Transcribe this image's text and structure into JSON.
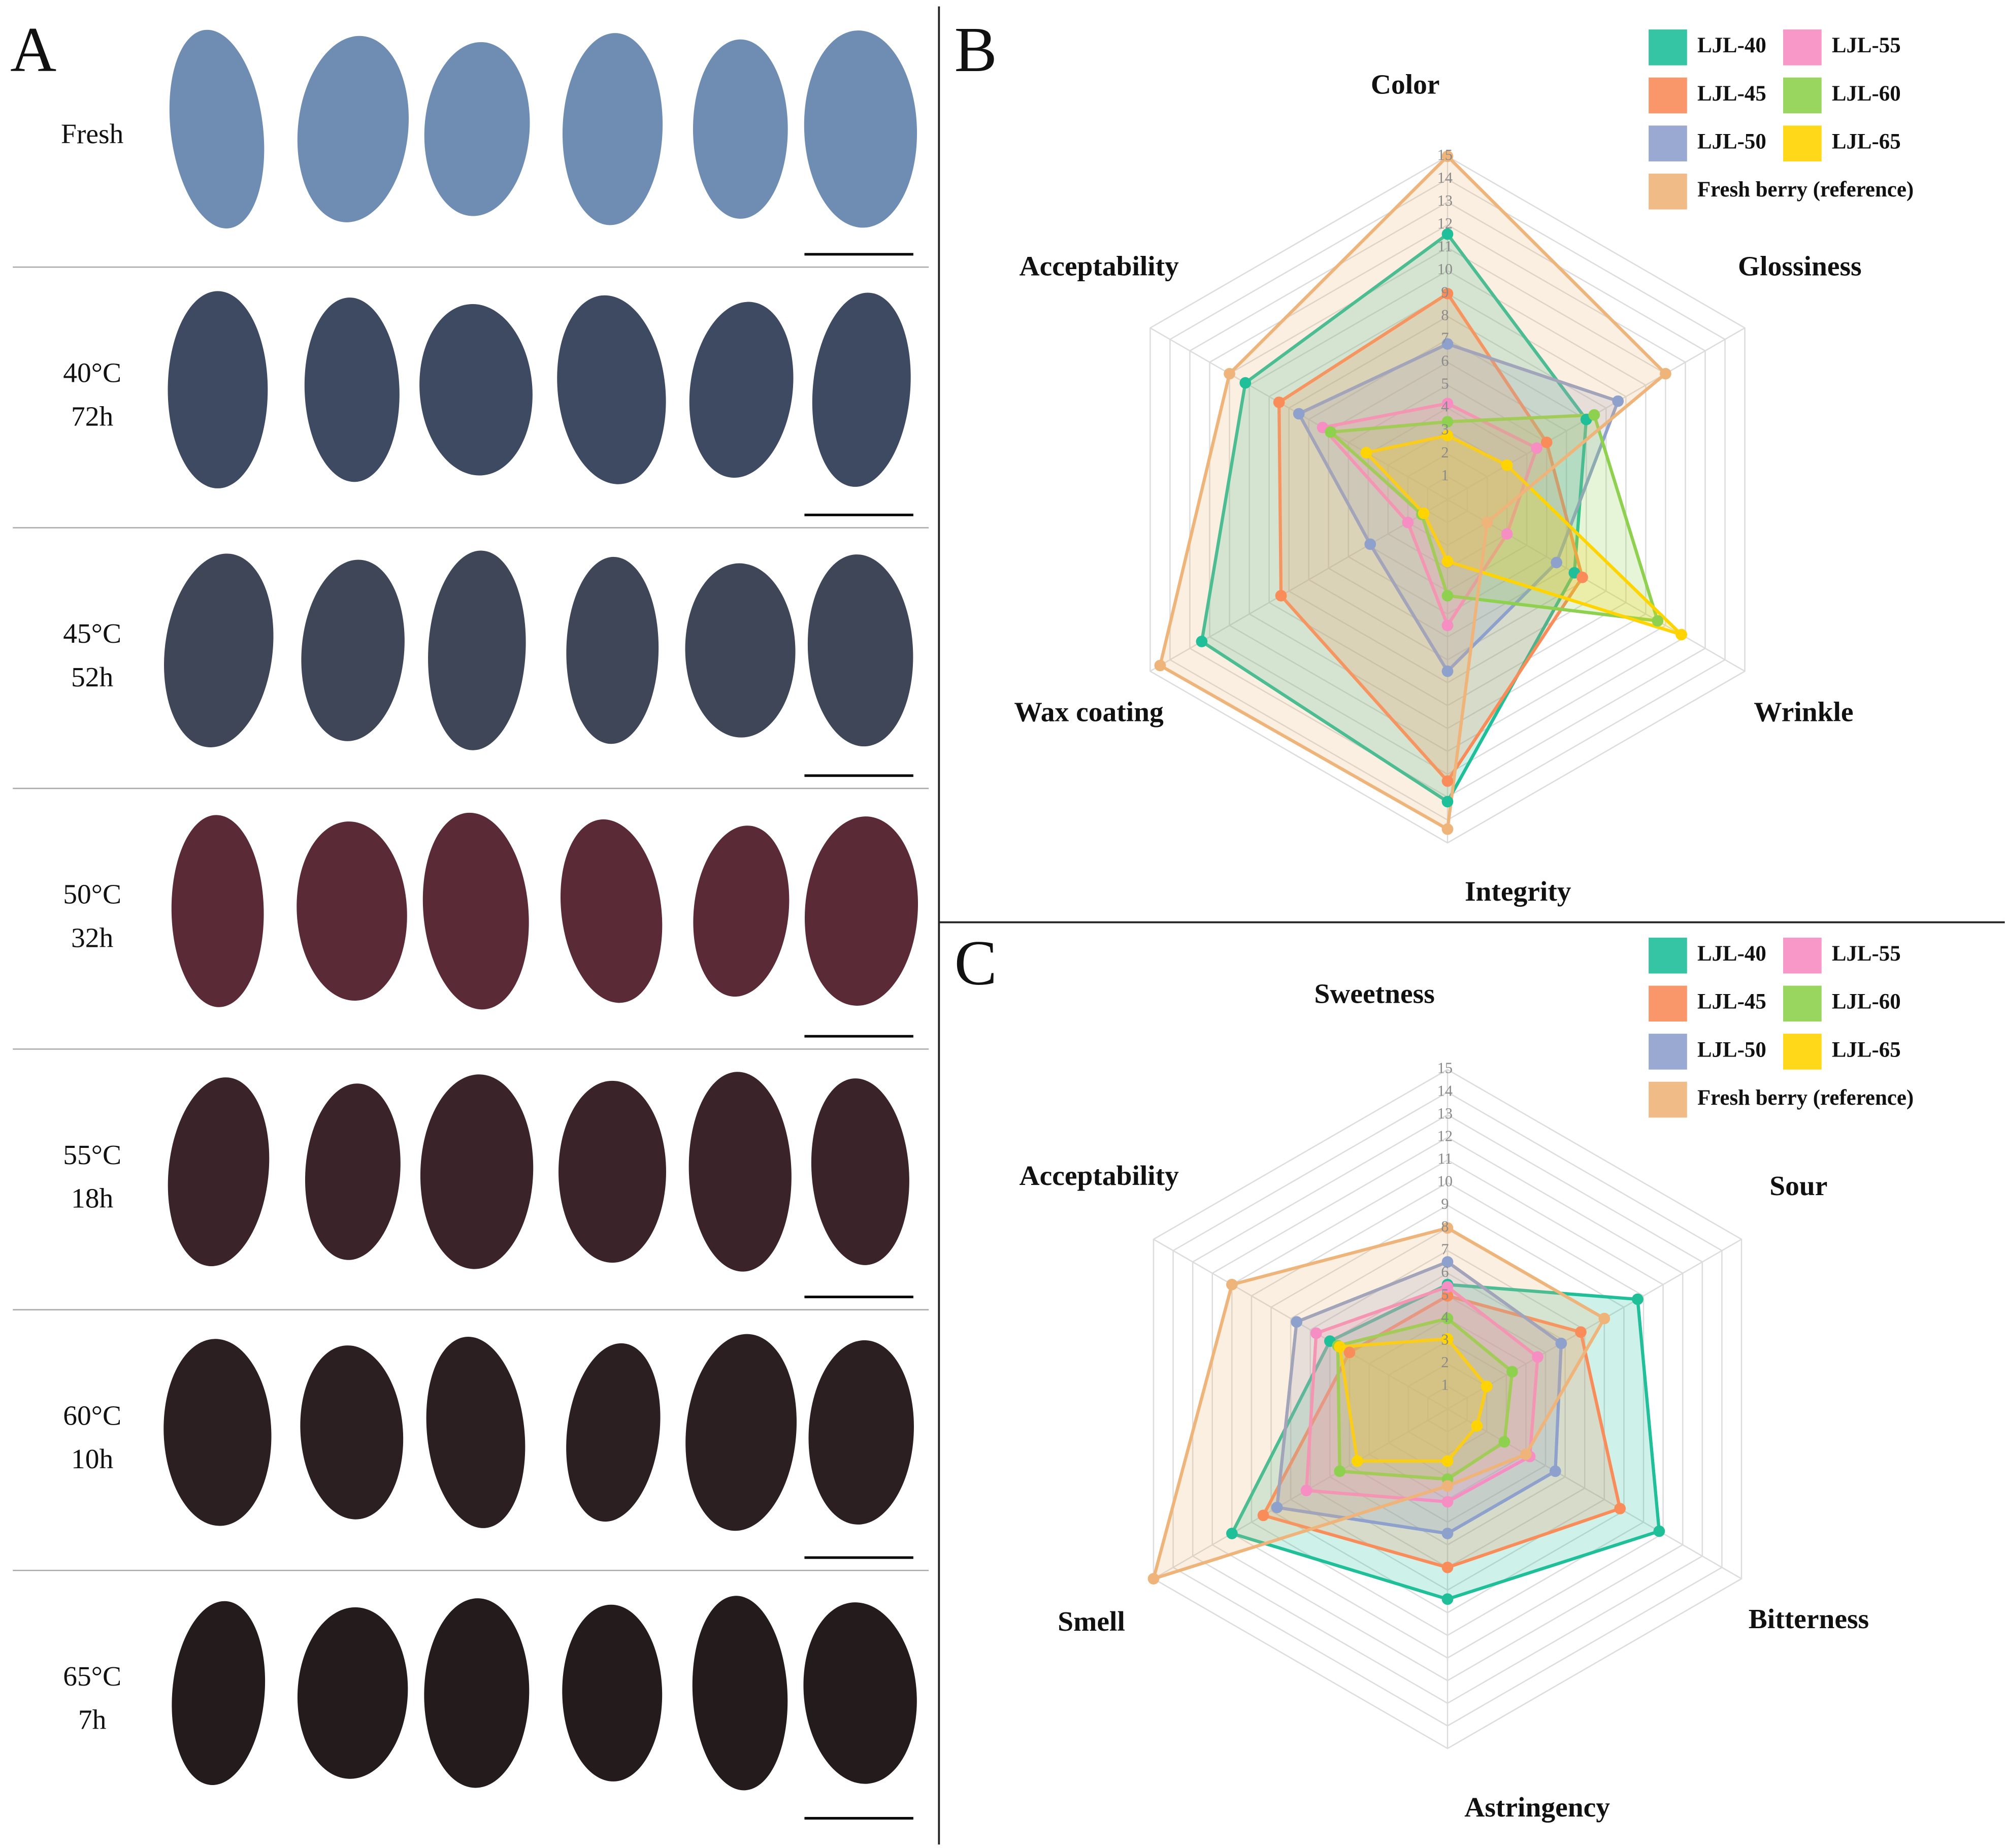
{
  "panel_a": {
    "label": "A",
    "rows": [
      [
        "Fresh"
      ],
      [
        "40°C",
        "72h"
      ],
      [
        "45°C",
        "52h"
      ],
      [
        "50°C",
        "32h"
      ],
      [
        "55°C",
        "18h"
      ],
      [
        "60°C",
        "10h"
      ],
      [
        "65°C",
        "7h"
      ]
    ]
  },
  "chart_data": [
    {
      "type": "radar",
      "label": "B",
      "axes": [
        "Color",
        "Glossiness",
        "Wrinkle",
        "Integrity",
        "Wax coating",
        "Acceptability"
      ],
      "rlim": [
        0,
        15
      ],
      "rticks": [
        1,
        2,
        3,
        4,
        5,
        6,
        7,
        8,
        9,
        10,
        11,
        12,
        13,
        14,
        15
      ],
      "grid": true,
      "legend": "upper right",
      "series": [
        {
          "name": "LJL-40",
          "color": "#1fbf9a",
          "values": [
            11.6,
            7,
            6.4,
            13.2,
            12.4,
            10.2
          ]
        },
        {
          "name": "LJL-45",
          "color": "#fa8c5a",
          "values": [
            9,
            5,
            6.8,
            12.3,
            8.4,
            8.5
          ]
        },
        {
          "name": "LJL-50",
          "color": "#8ea0cc",
          "values": [
            6.8,
            8.6,
            5.5,
            7.5,
            3.9,
            7.5
          ]
        },
        {
          "name": "LJL-55",
          "color": "#f68dc3",
          "values": [
            4.2,
            4.5,
            3,
            5.5,
            2,
            6.3
          ]
        },
        {
          "name": "LJL-60",
          "color": "#8ed14e",
          "values": [
            3.4,
            7.4,
            10.6,
            4.2,
            1.3,
            5.9
          ]
        },
        {
          "name": "LJL-65",
          "color": "#ffd400",
          "values": [
            2.8,
            3,
            11.8,
            2.7,
            1.2,
            4.1
          ]
        },
        {
          "name": "Fresh berry (reference)",
          "color": "#eeb47a",
          "values": [
            15,
            11,
            2,
            14.4,
            14.5,
            11
          ]
        }
      ]
    },
    {
      "type": "radar",
      "label": "C",
      "axes": [
        "Sweetness",
        "Sour",
        "Bitterness",
        "Astringency",
        "Smell",
        "Acceptability"
      ],
      "rlim": [
        0,
        15
      ],
      "rticks": [
        1,
        2,
        3,
        4,
        5,
        6,
        7,
        8,
        9,
        10,
        11,
        12,
        13,
        14,
        15
      ],
      "grid": true,
      "legend": "upper right",
      "series": [
        {
          "name": "LJL-40",
          "color": "#1fbf9a",
          "values": [
            5.5,
            9.7,
            10.8,
            8.4,
            11,
            6
          ]
        },
        {
          "name": "LJL-45",
          "color": "#fa8c5a",
          "values": [
            5,
            6.8,
            8.8,
            7,
            9.4,
            5
          ]
        },
        {
          "name": "LJL-50",
          "color": "#8ea0cc",
          "values": [
            6.5,
            5.8,
            5.5,
            5.5,
            8.7,
            7.7
          ]
        },
        {
          "name": "LJL-55",
          "color": "#f68dc3",
          "values": [
            5.4,
            4.6,
            4.2,
            4.1,
            7.2,
            6.7
          ]
        },
        {
          "name": "LJL-60",
          "color": "#8ed14e",
          "values": [
            4,
            3.3,
            2.9,
            3.1,
            5.5,
            5.6
          ]
        },
        {
          "name": "LJL-65",
          "color": "#ffd400",
          "values": [
            3.1,
            2,
            1.5,
            2.3,
            4.6,
            5.5
          ]
        },
        {
          "name": "Fresh berry (reference)",
          "color": "#eeb47a",
          "values": [
            8,
            8,
            4,
            3.4,
            15,
            11
          ]
        }
      ]
    }
  ]
}
